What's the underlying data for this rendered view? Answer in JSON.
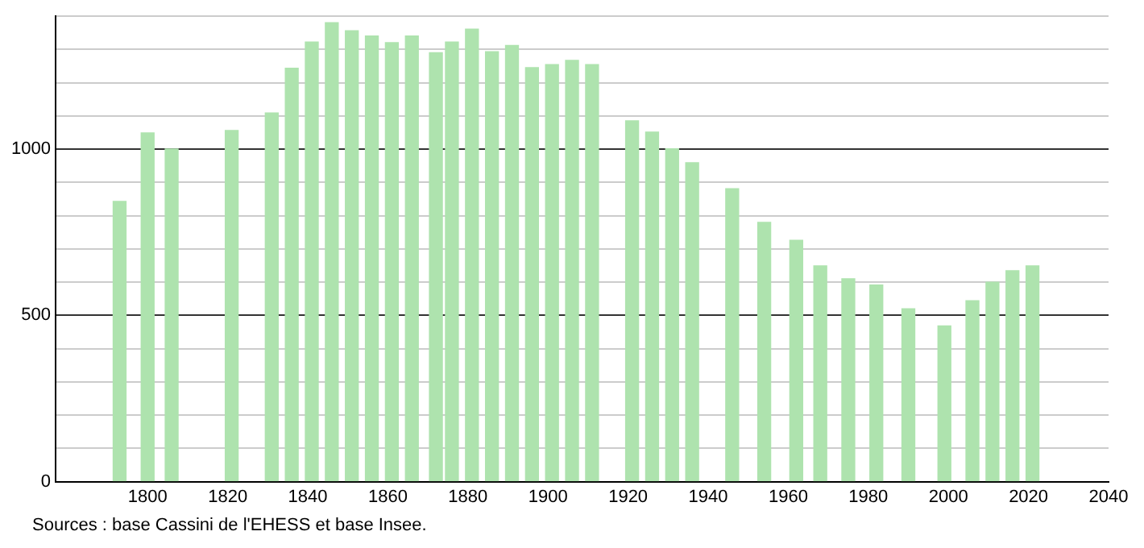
{
  "chart_data": {
    "type": "bar",
    "x": [
      1793,
      1800,
      1806,
      1821,
      1831,
      1836,
      1841,
      1846,
      1851,
      1856,
      1861,
      1866,
      1872,
      1876,
      1881,
      1886,
      1891,
      1896,
      1901,
      1906,
      1911,
      1921,
      1926,
      1931,
      1936,
      1946,
      1954,
      1962,
      1968,
      1975,
      1982,
      1990,
      1999,
      2006,
      2011,
      2016,
      2021
    ],
    "values": [
      843,
      1049,
      1000,
      1056,
      1109,
      1243,
      1322,
      1380,
      1356,
      1340,
      1320,
      1340,
      1290,
      1322,
      1361,
      1293,
      1312,
      1245,
      1254,
      1267,
      1254,
      1085,
      1051,
      1001,
      959,
      881,
      780,
      726,
      649,
      610,
      591,
      520,
      468,
      544,
      600,
      634,
      649
    ],
    "color": "#aee3ae",
    "xlim": [
      1777,
      2040
    ],
    "xticks": [
      1800,
      1820,
      1840,
      1860,
      1880,
      1900,
      1920,
      1940,
      1960,
      1980,
      2000,
      2020,
      2040
    ],
    "ylim": [
      0,
      1400
    ],
    "yticks": [
      0,
      {
        "value": 100,
        "label": null
      },
      {
        "value": 200,
        "label": null
      },
      {
        "value": 300,
        "label": null
      },
      {
        "value": 400,
        "label": null
      },
      500,
      {
        "value": 600,
        "label": null
      },
      {
        "value": 700,
        "label": null
      },
      {
        "value": 800,
        "label": null
      },
      {
        "value": 900,
        "label": null
      },
      1000,
      {
        "value": 1100,
        "label": null
      },
      {
        "value": 1200,
        "label": null
      },
      {
        "value": 1300,
        "label": null
      },
      {
        "value": 1400,
        "label": null
      }
    ],
    "grid": "y",
    "legend": false,
    "annotations": [
      "Sources : base Cassini de l'EHESS et base Insee."
    ]
  }
}
